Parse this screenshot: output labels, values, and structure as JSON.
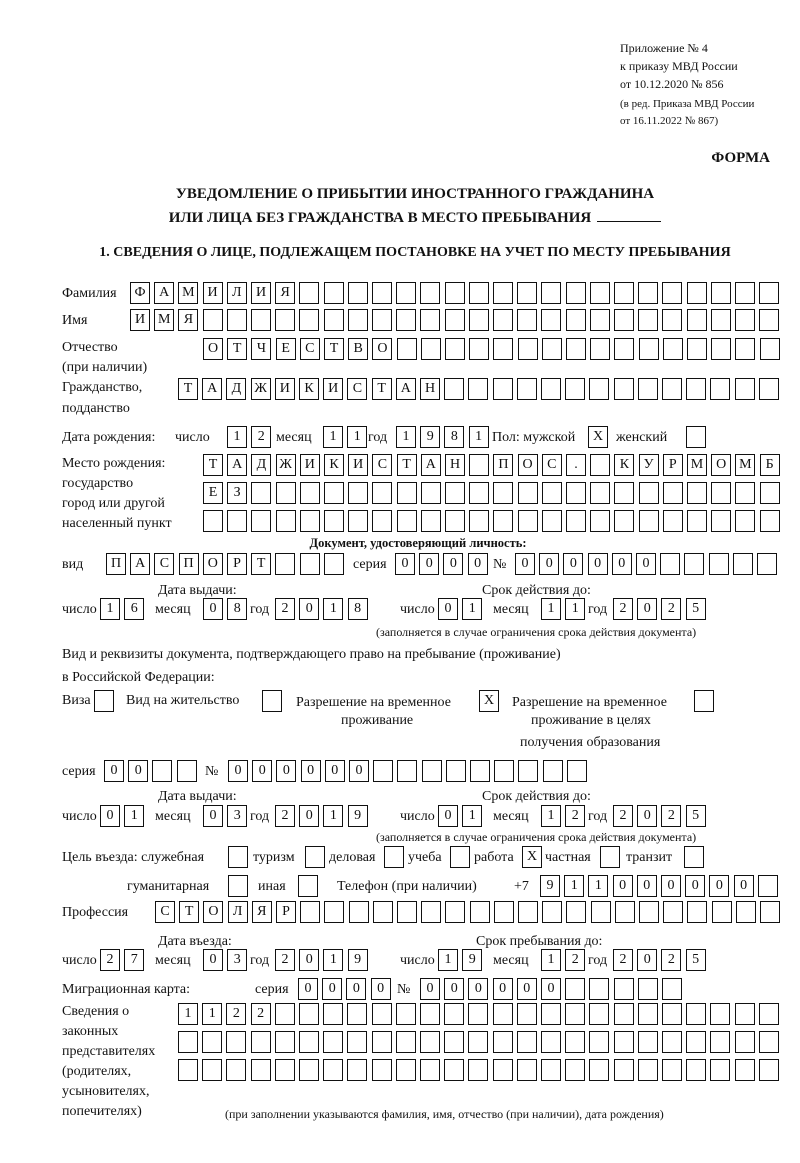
{
  "header": {
    "appendix": [
      "Приложение № 4",
      "к приказу МВД России",
      "от 10.12.2020 № 856"
    ],
    "revision": [
      "(в ред. Приказа МВД России",
      "от 16.11.2022 № 867)"
    ],
    "form_label": "ФОРМА",
    "title_line1": "УВЕДОМЛЕНИЕ О ПРИБЫТИИ ИНОСТРАННОГО ГРАЖДАНИНА",
    "title_line2": "ИЛИ ЛИЦА БЕЗ ГРАЖДАНСТВА В МЕСТО ПРЕБЫВАНИЯ",
    "section1": "1. СВЕДЕНИЯ О ЛИЦЕ, ПОДЛЕЖАЩЕМ ПОСТАНОВКЕ НА УЧЕТ ПО МЕСТУ ПРЕБЫВАНИЯ"
  },
  "labels": {
    "day": "число",
    "month": "месяц",
    "year": "год",
    "series": "серия",
    "number": "№",
    "issue_date": "Дата выдачи:",
    "valid_until": "Срок действия до:",
    "validity_note": "(заполняется в случае ограничения срока действия документа)"
  },
  "person": {
    "surname": {
      "label": "Фамилия",
      "value": "ФАМИЛИЯ"
    },
    "name": {
      "label": "Имя",
      "value": "ИМЯ"
    },
    "patronymic": {
      "label": "Отчество",
      "label2": "(при наличии)",
      "value": "ОТЧЕСТВО"
    },
    "citizenship": {
      "label": "Гражданство,",
      "label2": "подданство",
      "value": "ТАДЖИКИСТАН"
    },
    "birth_date": {
      "label": "Дата рождения:",
      "day": "12",
      "month": "11",
      "year": "1981"
    },
    "sex": {
      "label": "Пол: мужской",
      "female_label": "женский",
      "male": "X",
      "female": ""
    },
    "birth_place": {
      "labels": [
        "Место рождения:",
        "государство",
        "город или другой",
        "населенный пункт"
      ],
      "rows": [
        "ТАДЖИКИСТАН ПОС. КУРМОМБ",
        "ЕЗ",
        ""
      ]
    }
  },
  "identity_doc": {
    "heading": "Документ, удостоверяющий личность:",
    "type_label": "вид",
    "type": "ПАСПОРТ",
    "series": "0000",
    "number": "000000",
    "issued": {
      "day": "16",
      "month": "08",
      "year": "2018"
    },
    "expires": {
      "day": "01",
      "month": "11",
      "year": "2025"
    }
  },
  "stay_doc": {
    "line1": "Вид и реквизиты документа, подтверждающего право на пребывание (проживание)",
    "line2": "в Российской Федерации:",
    "visa": {
      "label": "Виза",
      "mark": ""
    },
    "residence": {
      "label": "Вид на жительство",
      "mark": ""
    },
    "temp_residence": {
      "label": "Разрешение на временное",
      "label2": "проживание",
      "mark": "X"
    },
    "temp_residence_edu": {
      "label": "Разрешение на временное",
      "label2": "проживание в целях",
      "label3": "получения образования",
      "mark": ""
    },
    "series": "00",
    "number": "000000",
    "issued": {
      "day": "01",
      "month": "03",
      "year": "2019"
    },
    "expires": {
      "day": "01",
      "month": "12",
      "year": "2025"
    }
  },
  "purpose": {
    "label": "Цель въезда: служебная",
    "items": [
      {
        "label": "туризм",
        "mark": ""
      },
      {
        "label": "деловая",
        "mark": ""
      },
      {
        "label": "учеба",
        "mark": ""
      },
      {
        "label": "работа",
        "mark": "X"
      },
      {
        "label": "частная",
        "mark": ""
      },
      {
        "label": "транзит",
        "mark": ""
      },
      {
        "label": "гуманитарная",
        "mark": ""
      },
      {
        "label": "иная",
        "mark": ""
      }
    ],
    "service_mark": ""
  },
  "phone": {
    "label": "Телефон (при наличии)",
    "prefix": "+7",
    "value": "911000000"
  },
  "profession": {
    "label": "Профессия",
    "value": "СТОЛЯР"
  },
  "entry": {
    "entry_label": "Дата въезда:",
    "stay_label": "Срок пребывания до:",
    "entry_date": {
      "day": "27",
      "month": "03",
      "year": "2019"
    },
    "stay_until": {
      "day": "19",
      "month": "12",
      "year": "2025"
    }
  },
  "migration_card": {
    "label": "Миграционная карта:",
    "series": "0000",
    "number": "000000"
  },
  "representatives": {
    "labels": [
      "Сведения о",
      "законных",
      "представителях",
      "(родителях,",
      "усыновителях,",
      "попечителях)"
    ],
    "rows": [
      "1122",
      "",
      ""
    ],
    "note": "(при заполнении указываются фамилия, имя, отчество (при наличии), дата рождения)"
  }
}
